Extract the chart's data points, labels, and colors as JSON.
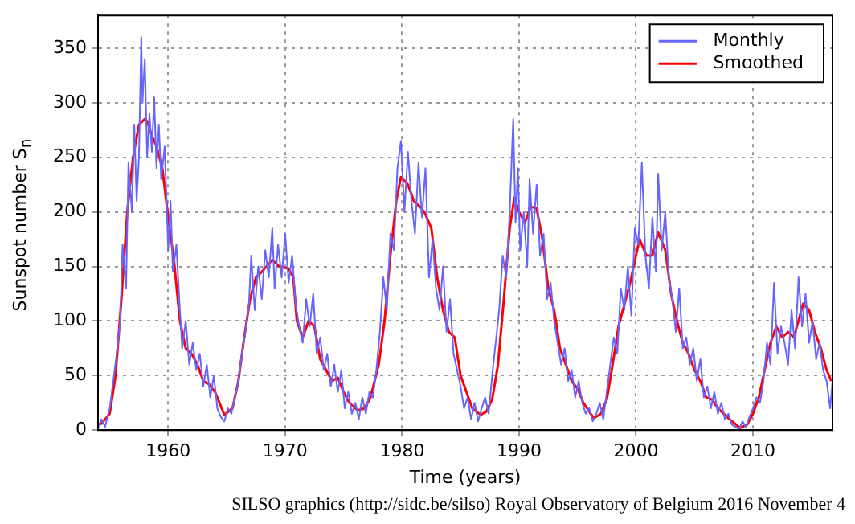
{
  "chart_data": {
    "type": "line",
    "xlabel": "Time (years)",
    "ylabel": "Sunspot number S$_{n}$",
    "annotations": [
      "SILSO graphics (http://sidc.be/silso)  Royal Observatory of Belgium  2016 November 4"
    ],
    "xlim": [
      1954,
      2016.8
    ],
    "xticks": [
      1960,
      1970,
      1980,
      1990,
      2000,
      2010
    ],
    "ylim": [
      0,
      380
    ],
    "yticks": [
      0,
      50,
      100,
      150,
      200,
      250,
      300,
      350
    ],
    "grid": true,
    "legend": "top right",
    "marker": "none",
    "line_style": "solid",
    "series": [
      {
        "name": "Monthly",
        "color": "#6666ff",
        "x": [
          1954.0,
          1954.3,
          1954.6,
          1955.0,
          1955.3,
          1955.6,
          1955.9,
          1956.1,
          1956.4,
          1956.6,
          1956.9,
          1957.1,
          1957.3,
          1957.5,
          1957.7,
          1957.8,
          1958.0,
          1958.2,
          1958.4,
          1958.6,
          1958.8,
          1959.0,
          1959.2,
          1959.4,
          1959.7,
          1960.0,
          1960.2,
          1960.4,
          1960.7,
          1961.0,
          1961.2,
          1961.5,
          1961.8,
          1962.1,
          1962.4,
          1962.7,
          1963.0,
          1963.3,
          1963.6,
          1963.9,
          1964.2,
          1964.5,
          1964.8,
          1965.1,
          1965.4,
          1965.7,
          1966.0,
          1966.3,
          1966.6,
          1966.9,
          1967.1,
          1967.4,
          1967.7,
          1968.0,
          1968.3,
          1968.6,
          1968.9,
          1969.1,
          1969.4,
          1969.7,
          1970.0,
          1970.3,
          1970.6,
          1970.9,
          1971.2,
          1971.5,
          1971.8,
          1972.1,
          1972.4,
          1972.7,
          1973.0,
          1973.3,
          1973.6,
          1973.9,
          1974.2,
          1974.5,
          1974.8,
          1975.1,
          1975.4,
          1975.7,
          1976.0,
          1976.3,
          1976.6,
          1976.9,
          1977.2,
          1977.5,
          1977.8,
          1978.1,
          1978.4,
          1978.7,
          1979.0,
          1979.3,
          1979.6,
          1979.9,
          1980.2,
          1980.5,
          1980.8,
          1981.1,
          1981.4,
          1981.7,
          1982.0,
          1982.3,
          1982.6,
          1982.9,
          1983.2,
          1983.5,
          1983.8,
          1984.1,
          1984.4,
          1984.7,
          1985.0,
          1985.3,
          1985.6,
          1985.9,
          1986.2,
          1986.5,
          1986.8,
          1987.1,
          1987.4,
          1987.7,
          1988.0,
          1988.3,
          1988.6,
          1988.9,
          1989.2,
          1989.5,
          1989.7,
          1989.9,
          1990.1,
          1990.4,
          1990.7,
          1990.9,
          1991.2,
          1991.5,
          1991.8,
          1992.1,
          1992.4,
          1992.7,
          1993.0,
          1993.3,
          1993.6,
          1993.9,
          1994.2,
          1994.5,
          1994.8,
          1995.1,
          1995.4,
          1995.7,
          1996.0,
          1996.3,
          1996.6,
          1996.9,
          1997.2,
          1997.5,
          1997.8,
          1998.1,
          1998.4,
          1998.7,
          1999.0,
          1999.3,
          1999.6,
          1999.9,
          2000.2,
          2000.5,
          2000.8,
          2001.1,
          2001.4,
          2001.7,
          2001.9,
          2002.2,
          2002.5,
          2002.8,
          2003.1,
          2003.4,
          2003.7,
          2004.0,
          2004.3,
          2004.6,
          2004.9,
          2005.2,
          2005.5,
          2005.8,
          2006.1,
          2006.4,
          2006.7,
          2007.0,
          2007.3,
          2007.6,
          2007.9,
          2008.2,
          2008.5,
          2008.8,
          2009.1,
          2009.4,
          2009.7,
          2010.0,
          2010.3,
          2010.6,
          2010.9,
          2011.2,
          2011.5,
          2011.8,
          2012.1,
          2012.4,
          2012.7,
          2013.0,
          2013.3,
          2013.6,
          2013.9,
          2014.2,
          2014.5,
          2014.8,
          2015.1,
          2015.4,
          2015.7,
          2016.0,
          2016.3,
          2016.6,
          2016.8
        ],
        "values": [
          2,
          10,
          3,
          20,
          45,
          70,
          100,
          170,
          130,
          245,
          200,
          280,
          210,
          250,
          360,
          300,
          340,
          250,
          290,
          255,
          305,
          240,
          280,
          230,
          260,
          165,
          210,
          145,
          170,
          110,
          75,
          100,
          60,
          80,
          55,
          70,
          40,
          60,
          30,
          50,
          20,
          12,
          8,
          20,
          15,
          30,
          45,
          70,
          90,
          115,
          160,
          110,
          150,
          120,
          165,
          140,
          185,
          130,
          170,
          140,
          180,
          135,
          160,
          115,
          95,
          80,
          120,
          95,
          125,
          70,
          85,
          55,
          70,
          40,
          60,
          35,
          55,
          20,
          35,
          15,
          25,
          10,
          30,
          15,
          35,
          30,
          55,
          90,
          140,
          110,
          180,
          165,
          240,
          265,
          200,
          255,
          210,
          180,
          245,
          195,
          240,
          140,
          175,
          130,
          110,
          150,
          90,
          120,
          70,
          55,
          40,
          20,
          30,
          10,
          25,
          8,
          20,
          30,
          15,
          50,
          80,
          110,
          160,
          140,
          200,
          285,
          190,
          240,
          165,
          200,
          150,
          230,
          180,
          225,
          160,
          180,
          120,
          135,
          100,
          80,
          60,
          75,
          45,
          55,
          30,
          45,
          25,
          15,
          20,
          8,
          15,
          25,
          10,
          35,
          60,
          85,
          70,
          130,
          110,
          150,
          105,
          185,
          170,
          245,
          160,
          130,
          195,
          145,
          235,
          165,
          200,
          140,
          120,
          90,
          130,
          75,
          85,
          60,
          75,
          45,
          65,
          30,
          40,
          20,
          35,
          15,
          25,
          10,
          15,
          5,
          3,
          1,
          8,
          3,
          12,
          20,
          30,
          25,
          45,
          80,
          60,
          135,
          70,
          95,
          80,
          60,
          110,
          75,
          140,
          95,
          125,
          80,
          100,
          65,
          80,
          55,
          45,
          20,
          45
        ]
      },
      {
        "name": "Smoothed",
        "color": "#ff0000",
        "x": [
          1954.0,
          1954.3,
          1955.0,
          1955.5,
          1956.0,
          1956.5,
          1957.0,
          1957.5,
          1958.0,
          1958.2,
          1958.6,
          1959.0,
          1959.5,
          1960.0,
          1960.5,
          1961.0,
          1961.5,
          1962.0,
          1962.5,
          1963.0,
          1963.5,
          1964.0,
          1964.8,
          1965.5,
          1966.0,
          1966.5,
          1967.0,
          1967.5,
          1968.0,
          1968.9,
          1969.5,
          1970.3,
          1970.7,
          1971.0,
          1971.5,
          1972.0,
          1972.5,
          1973.0,
          1973.5,
          1974.0,
          1974.5,
          1975.0,
          1975.5,
          1976.2,
          1976.8,
          1977.3,
          1978.0,
          1978.5,
          1979.0,
          1979.5,
          1979.9,
          1980.5,
          1981.0,
          1981.5,
          1981.9,
          1982.5,
          1983.0,
          1983.5,
          1984.0,
          1984.5,
          1985.0,
          1985.5,
          1986.0,
          1986.7,
          1987.2,
          1987.7,
          1988.2,
          1988.7,
          1989.2,
          1989.6,
          1990.0,
          1990.5,
          1991.0,
          1991.5,
          1992.0,
          1992.5,
          1993.0,
          1993.5,
          1994.0,
          1994.5,
          1995.0,
          1995.5,
          1996.0,
          1996.4,
          1997.0,
          1997.5,
          1998.0,
          1998.5,
          1999.0,
          1999.5,
          2000.0,
          2000.3,
          2000.9,
          2001.4,
          2001.9,
          2002.5,
          2003.0,
          2003.5,
          2004.0,
          2004.5,
          2005.0,
          2005.5,
          2006.0,
          2006.5,
          2007.0,
          2007.5,
          2008.0,
          2008.9,
          2009.5,
          2010.0,
          2010.5,
          2011.0,
          2011.5,
          2012.0,
          2012.5,
          2013.0,
          2013.5,
          2014.3,
          2014.8,
          2015.3,
          2015.8,
          2016.3,
          2016.7
        ],
        "values": [
          5,
          6,
          15,
          50,
          120,
          200,
          250,
          280,
          285,
          283,
          270,
          260,
          240,
          195,
          155,
          100,
          75,
          70,
          60,
          45,
          42,
          35,
          14,
          20,
          45,
          85,
          120,
          140,
          145,
          156,
          150,
          148,
          140,
          100,
          85,
          100,
          95,
          65,
          55,
          45,
          48,
          35,
          25,
          18,
          20,
          30,
          60,
          100,
          160,
          210,
          232,
          225,
          210,
          205,
          200,
          185,
          140,
          110,
          90,
          85,
          50,
          35,
          20,
          14,
          17,
          28,
          60,
          120,
          185,
          213,
          200,
          190,
          205,
          203,
          175,
          130,
          110,
          75,
          60,
          45,
          38,
          25,
          17,
          11,
          15,
          28,
          60,
          95,
          115,
          135,
          160,
          175,
          160,
          160,
          181,
          165,
          125,
          100,
          80,
          70,
          55,
          45,
          30,
          28,
          20,
          15,
          10,
          2,
          5,
          15,
          30,
          55,
          80,
          95,
          85,
          90,
          85,
          116,
          110,
          90,
          75,
          55,
          45
        ]
      }
    ]
  }
}
